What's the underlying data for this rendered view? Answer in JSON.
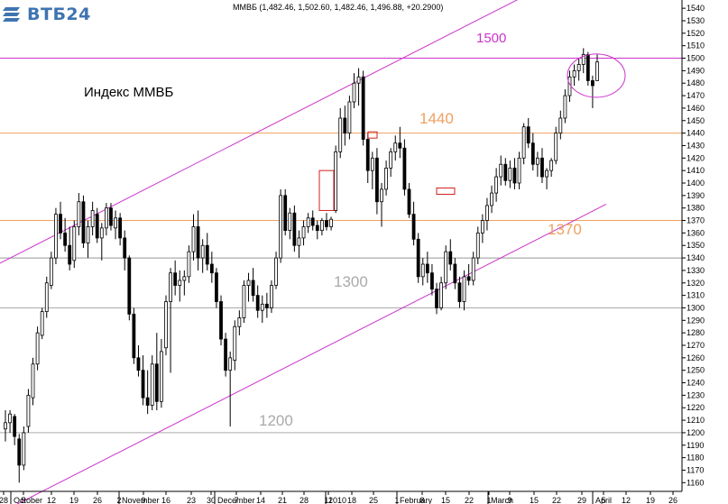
{
  "logo": {
    "text": "ВТБ24",
    "accent": "#3f74b0"
  },
  "header": {
    "quote": "ММВБ (1,482.46, 1,502.60, 1,482.46, 1,496.88, +20.2900)"
  },
  "chart_data": {
    "type": "candlestick",
    "title": "Индекс ММВБ",
    "ylim": [
      1153,
      1543
    ],
    "y_ticks": [
      1160,
      1170,
      1180,
      1190,
      1200,
      1210,
      1220,
      1230,
      1240,
      1250,
      1260,
      1270,
      1280,
      1290,
      1300,
      1310,
      1320,
      1330,
      1340,
      1350,
      1360,
      1370,
      1380,
      1390,
      1400,
      1410,
      1420,
      1430,
      1440,
      1450,
      1460,
      1470,
      1480,
      1490,
      1500,
      1510,
      1520,
      1530,
      1540
    ],
    "x_ticks": [
      "28",
      "5",
      "12",
      "19",
      "26",
      "2",
      "9",
      "16",
      "23",
      "30",
      "7",
      "14",
      "21",
      "28",
      "11",
      "18",
      "25",
      "1",
      "8",
      "15",
      "22",
      "1",
      "9",
      "15",
      "22",
      "29",
      "5",
      "12",
      "19",
      "26"
    ],
    "months": [
      "October",
      "November",
      "December",
      "2010",
      "February",
      "March",
      "April"
    ],
    "levels": [
      {
        "value": 1500,
        "label": "1500",
        "color": "#cc33cc"
      },
      {
        "value": 1440,
        "label": "1440",
        "color": "#f0a060"
      },
      {
        "value": 1370,
        "label": "1370",
        "color": "#f0a060"
      },
      {
        "value": 1340,
        "label": "",
        "color": "#999999"
      },
      {
        "value": 1300,
        "label": "1300",
        "color": "#aaaaaa"
      },
      {
        "value": 1200,
        "label": "1200",
        "color": "#aaaaaa"
      }
    ],
    "channel": {
      "color": "#cc33cc"
    },
    "series": [
      {
        "o": 1203,
        "h": 1218,
        "l": 1193,
        "c": 1208
      },
      {
        "o": 1208,
        "h": 1218,
        "l": 1200,
        "c": 1215
      },
      {
        "o": 1213,
        "h": 1215,
        "l": 1190,
        "c": 1197
      },
      {
        "o": 1195,
        "h": 1199,
        "l": 1160,
        "c": 1174
      },
      {
        "o": 1174,
        "h": 1205,
        "l": 1170,
        "c": 1200
      },
      {
        "o": 1205,
        "h": 1235,
        "l": 1200,
        "c": 1230
      },
      {
        "o": 1228,
        "h": 1260,
        "l": 1222,
        "c": 1255
      },
      {
        "o": 1255,
        "h": 1285,
        "l": 1250,
        "c": 1280
      },
      {
        "o": 1278,
        "h": 1300,
        "l": 1275,
        "c": 1297
      },
      {
        "o": 1297,
        "h": 1325,
        "l": 1292,
        "c": 1320
      },
      {
        "o": 1318,
        "h": 1345,
        "l": 1315,
        "c": 1340
      },
      {
        "o": 1340,
        "h": 1380,
        "l": 1335,
        "c": 1375
      },
      {
        "o": 1375,
        "h": 1385,
        "l": 1355,
        "c": 1360
      },
      {
        "o": 1360,
        "h": 1372,
        "l": 1345,
        "c": 1350
      },
      {
        "o": 1350,
        "h": 1365,
        "l": 1330,
        "c": 1335
      },
      {
        "o": 1338,
        "h": 1370,
        "l": 1332,
        "c": 1365
      },
      {
        "o": 1365,
        "h": 1392,
        "l": 1358,
        "c": 1385
      },
      {
        "o": 1385,
        "h": 1390,
        "l": 1348,
        "c": 1352
      },
      {
        "o": 1352,
        "h": 1370,
        "l": 1340,
        "c": 1365
      },
      {
        "o": 1365,
        "h": 1385,
        "l": 1358,
        "c": 1378
      },
      {
        "o": 1375,
        "h": 1380,
        "l": 1352,
        "c": 1356
      },
      {
        "o": 1356,
        "h": 1368,
        "l": 1338,
        "c": 1364
      },
      {
        "o": 1364,
        "h": 1384,
        "l": 1358,
        "c": 1380
      },
      {
        "o": 1380,
        "h": 1384,
        "l": 1362,
        "c": 1366
      },
      {
        "o": 1364,
        "h": 1378,
        "l": 1355,
        "c": 1372
      },
      {
        "o": 1372,
        "h": 1376,
        "l": 1350,
        "c": 1356
      },
      {
        "o": 1356,
        "h": 1362,
        "l": 1330,
        "c": 1340
      },
      {
        "o": 1340,
        "h": 1342,
        "l": 1290,
        "c": 1295
      },
      {
        "o": 1295,
        "h": 1300,
        "l": 1255,
        "c": 1260
      },
      {
        "o": 1260,
        "h": 1270,
        "l": 1245,
        "c": 1250
      },
      {
        "o": 1250,
        "h": 1262,
        "l": 1222,
        "c": 1228
      },
      {
        "o": 1228,
        "h": 1250,
        "l": 1215,
        "c": 1222
      },
      {
        "o": 1222,
        "h": 1262,
        "l": 1218,
        "c": 1255
      },
      {
        "o": 1255,
        "h": 1280,
        "l": 1218,
        "c": 1225
      },
      {
        "o": 1225,
        "h": 1275,
        "l": 1220,
        "c": 1265
      },
      {
        "o": 1268,
        "h": 1310,
        "l": 1262,
        "c": 1305
      },
      {
        "o": 1305,
        "h": 1332,
        "l": 1248,
        "c": 1328
      },
      {
        "o": 1328,
        "h": 1338,
        "l": 1310,
        "c": 1318
      },
      {
        "o": 1318,
        "h": 1330,
        "l": 1305,
        "c": 1322
      },
      {
        "o": 1322,
        "h": 1330,
        "l": 1310,
        "c": 1325
      },
      {
        "o": 1325,
        "h": 1350,
        "l": 1320,
        "c": 1345
      },
      {
        "o": 1345,
        "h": 1375,
        "l": 1338,
        "c": 1365
      },
      {
        "o": 1365,
        "h": 1378,
        "l": 1330,
        "c": 1340
      },
      {
        "o": 1340,
        "h": 1355,
        "l": 1328,
        "c": 1350
      },
      {
        "o": 1350,
        "h": 1360,
        "l": 1330,
        "c": 1335
      },
      {
        "o": 1335,
        "h": 1345,
        "l": 1320,
        "c": 1328
      },
      {
        "o": 1328,
        "h": 1332,
        "l": 1300,
        "c": 1305
      },
      {
        "o": 1305,
        "h": 1310,
        "l": 1270,
        "c": 1275
      },
      {
        "o": 1275,
        "h": 1280,
        "l": 1245,
        "c": 1250
      },
      {
        "o": 1250,
        "h": 1265,
        "l": 1205,
        "c": 1260
      },
      {
        "o": 1258,
        "h": 1290,
        "l": 1250,
        "c": 1285
      },
      {
        "o": 1285,
        "h": 1298,
        "l": 1278,
        "c": 1292
      },
      {
        "o": 1292,
        "h": 1322,
        "l": 1288,
        "c": 1318
      },
      {
        "o": 1318,
        "h": 1328,
        "l": 1305,
        "c": 1322
      },
      {
        "o": 1322,
        "h": 1332,
        "l": 1305,
        "c": 1310
      },
      {
        "o": 1310,
        "h": 1318,
        "l": 1292,
        "c": 1298
      },
      {
        "o": 1298,
        "h": 1310,
        "l": 1288,
        "c": 1303
      },
      {
        "o": 1303,
        "h": 1312,
        "l": 1292,
        "c": 1300
      },
      {
        "o": 1300,
        "h": 1322,
        "l": 1296,
        "c": 1318
      },
      {
        "o": 1318,
        "h": 1345,
        "l": 1315,
        "c": 1340
      },
      {
        "o": 1340,
        "h": 1395,
        "l": 1336,
        "c": 1390
      },
      {
        "o": 1390,
        "h": 1395,
        "l": 1358,
        "c": 1362
      },
      {
        "o": 1362,
        "h": 1380,
        "l": 1355,
        "c": 1376
      },
      {
        "o": 1376,
        "h": 1382,
        "l": 1345,
        "c": 1350
      },
      {
        "o": 1350,
        "h": 1362,
        "l": 1340,
        "c": 1356
      },
      {
        "o": 1356,
        "h": 1370,
        "l": 1350,
        "c": 1365
      },
      {
        "o": 1365,
        "h": 1376,
        "l": 1360,
        "c": 1372
      },
      {
        "o": 1372,
        "h": 1378,
        "l": 1362,
        "c": 1366
      },
      {
        "o": 1366,
        "h": 1370,
        "l": 1355,
        "c": 1362
      },
      {
        "o": 1362,
        "h": 1372,
        "l": 1358,
        "c": 1370
      },
      {
        "o": 1370,
        "h": 1376,
        "l": 1362,
        "c": 1365
      },
      {
        "o": 1365,
        "h": 1373,
        "l": 1362,
        "c": 1371
      },
      {
        "o": 1378,
        "h": 1430,
        "l": 1376,
        "c": 1425
      },
      {
        "o": 1425,
        "h": 1460,
        "l": 1420,
        "c": 1452
      },
      {
        "o": 1452,
        "h": 1462,
        "l": 1430,
        "c": 1440
      },
      {
        "o": 1440,
        "h": 1470,
        "l": 1435,
        "c": 1465
      },
      {
        "o": 1465,
        "h": 1488,
        "l": 1460,
        "c": 1480
      },
      {
        "o": 1480,
        "h": 1492,
        "l": 1462,
        "c": 1485
      },
      {
        "o": 1485,
        "h": 1490,
        "l": 1430,
        "c": 1435
      },
      {
        "o": 1435,
        "h": 1440,
        "l": 1400,
        "c": 1410
      },
      {
        "o": 1410,
        "h": 1425,
        "l": 1395,
        "c": 1420
      },
      {
        "o": 1420,
        "h": 1428,
        "l": 1375,
        "c": 1385
      },
      {
        "o": 1385,
        "h": 1400,
        "l": 1365,
        "c": 1395
      },
      {
        "o": 1395,
        "h": 1418,
        "l": 1390,
        "c": 1412
      },
      {
        "o": 1412,
        "h": 1428,
        "l": 1405,
        "c": 1425
      },
      {
        "o": 1425,
        "h": 1438,
        "l": 1418,
        "c": 1432
      },
      {
        "o": 1432,
        "h": 1445,
        "l": 1420,
        "c": 1428
      },
      {
        "o": 1428,
        "h": 1435,
        "l": 1390,
        "c": 1395
      },
      {
        "o": 1395,
        "h": 1400,
        "l": 1372,
        "c": 1375
      },
      {
        "o": 1375,
        "h": 1385,
        "l": 1350,
        "c": 1355
      },
      {
        "o": 1355,
        "h": 1360,
        "l": 1320,
        "c": 1325
      },
      {
        "o": 1325,
        "h": 1340,
        "l": 1318,
        "c": 1335
      },
      {
        "o": 1335,
        "h": 1345,
        "l": 1320,
        "c": 1328
      },
      {
        "o": 1328,
        "h": 1335,
        "l": 1310,
        "c": 1315
      },
      {
        "o": 1315,
        "h": 1320,
        "l": 1295,
        "c": 1300
      },
      {
        "o": 1300,
        "h": 1325,
        "l": 1298,
        "c": 1320
      },
      {
        "o": 1320,
        "h": 1350,
        "l": 1315,
        "c": 1345
      },
      {
        "o": 1345,
        "h": 1355,
        "l": 1330,
        "c": 1335
      },
      {
        "o": 1335,
        "h": 1340,
        "l": 1315,
        "c": 1320
      },
      {
        "o": 1320,
        "h": 1325,
        "l": 1300,
        "c": 1305
      },
      {
        "o": 1305,
        "h": 1330,
        "l": 1298,
        "c": 1325
      },
      {
        "o": 1325,
        "h": 1335,
        "l": 1318,
        "c": 1322
      },
      {
        "o": 1322,
        "h": 1345,
        "l": 1318,
        "c": 1340
      },
      {
        "o": 1340,
        "h": 1365,
        "l": 1335,
        "c": 1360
      },
      {
        "o": 1360,
        "h": 1375,
        "l": 1352,
        "c": 1370
      },
      {
        "o": 1370,
        "h": 1388,
        "l": 1362,
        "c": 1382
      },
      {
        "o": 1382,
        "h": 1398,
        "l": 1376,
        "c": 1392
      },
      {
        "o": 1392,
        "h": 1412,
        "l": 1385,
        "c": 1405
      },
      {
        "o": 1405,
        "h": 1422,
        "l": 1398,
        "c": 1415
      },
      {
        "o": 1415,
        "h": 1420,
        "l": 1398,
        "c": 1402
      },
      {
        "o": 1402,
        "h": 1418,
        "l": 1396,
        "c": 1412
      },
      {
        "o": 1412,
        "h": 1420,
        "l": 1395,
        "c": 1400
      },
      {
        "o": 1400,
        "h": 1425,
        "l": 1395,
        "c": 1420
      },
      {
        "o": 1420,
        "h": 1448,
        "l": 1415,
        "c": 1445
      },
      {
        "o": 1445,
        "h": 1452,
        "l": 1428,
        "c": 1432
      },
      {
        "o": 1432,
        "h": 1440,
        "l": 1410,
        "c": 1415
      },
      {
        "o": 1415,
        "h": 1425,
        "l": 1405,
        "c": 1420
      },
      {
        "o": 1420,
        "h": 1428,
        "l": 1400,
        "c": 1405
      },
      {
        "o": 1405,
        "h": 1412,
        "l": 1395,
        "c": 1410
      },
      {
        "o": 1410,
        "h": 1420,
        "l": 1405,
        "c": 1418
      },
      {
        "o": 1418,
        "h": 1445,
        "l": 1415,
        "c": 1440
      },
      {
        "o": 1440,
        "h": 1458,
        "l": 1435,
        "c": 1452
      },
      {
        "o": 1452,
        "h": 1475,
        "l": 1448,
        "c": 1470
      },
      {
        "o": 1470,
        "h": 1490,
        "l": 1465,
        "c": 1485
      },
      {
        "o": 1485,
        "h": 1495,
        "l": 1478,
        "c": 1490
      },
      {
        "o": 1490,
        "h": 1500,
        "l": 1482,
        "c": 1495
      },
      {
        "o": 1495,
        "h": 1508,
        "l": 1488,
        "c": 1503
      },
      {
        "o": 1503,
        "h": 1505,
        "l": 1478,
        "c": 1482
      },
      {
        "o": 1482,
        "h": 1486,
        "l": 1460,
        "c": 1478
      },
      {
        "o": 1482,
        "h": 1503,
        "l": 1482,
        "c": 1497
      }
    ]
  }
}
